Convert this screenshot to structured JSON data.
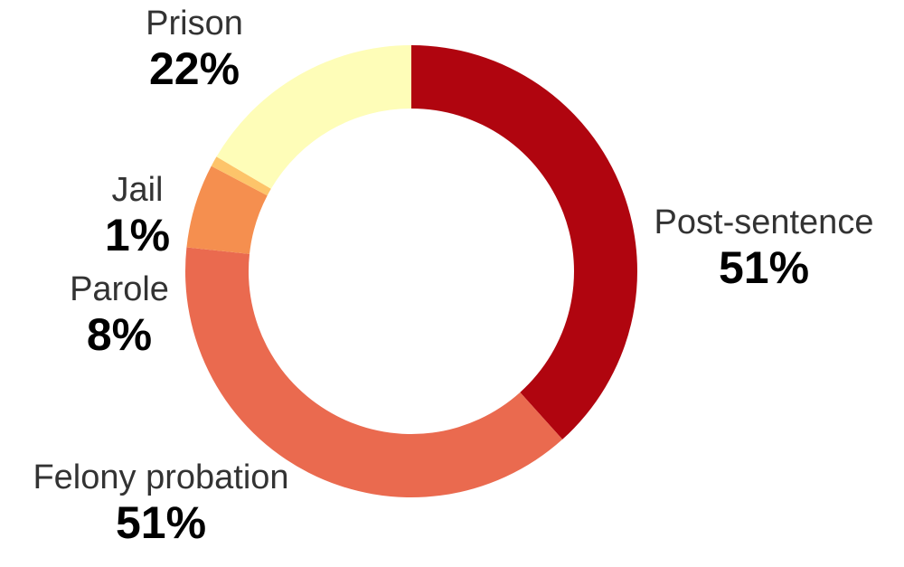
{
  "chart_data": {
    "type": "donut",
    "categories": [
      "Post-sentence",
      "Felony probation",
      "Parole",
      "Jail",
      "Prison"
    ],
    "values": [
      51,
      51,
      8,
      1,
      22
    ],
    "value_labels": [
      "51%",
      "51%",
      "8%",
      "1%",
      "22%"
    ],
    "colors": [
      "#b0050f",
      "#ea6a4f",
      "#f58f4f",
      "#fdc46a",
      "#fefdb8"
    ]
  }
}
